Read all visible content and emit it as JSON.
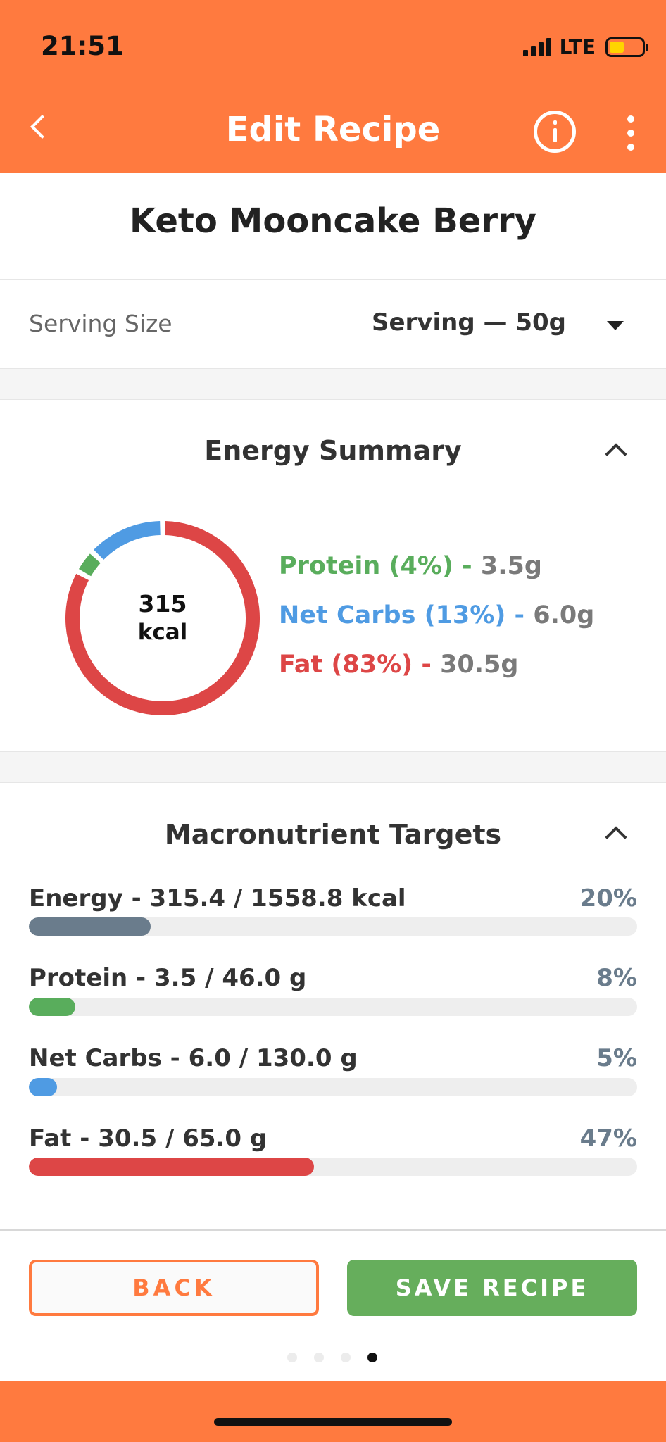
{
  "status_bar": {
    "time": "21:51",
    "network": "LTE"
  },
  "header": {
    "title": "Edit Recipe"
  },
  "recipe": {
    "name": "Keto Mooncake Berry"
  },
  "serving": {
    "label": "Serving Size",
    "value": "Serving  — 50g"
  },
  "energy_summary": {
    "title": "Energy Summary",
    "kcal_value": "315",
    "kcal_unit": "kcal",
    "legend": [
      {
        "label": "Protein (4%)",
        "separator": " - ",
        "amount": "3.5g",
        "color": "#59AD5C",
        "percent": 4
      },
      {
        "label": "Net Carbs (13%)",
        "separator": " - ",
        "amount": "6.0g",
        "color": "#4F9BE3",
        "percent": 13
      },
      {
        "label": "Fat (83%)",
        "separator": " - ",
        "amount": "30.5g",
        "color": "#DD4646",
        "percent": 83
      }
    ]
  },
  "macro_targets": {
    "title": "Macronutrient Targets",
    "items": [
      {
        "label": "Energy - 315.4 / 1558.8 kcal",
        "percent_label": "20%",
        "fraction": 0.2,
        "color": "#6A7C8C"
      },
      {
        "label": "Protein - 3.5 / 46.0 g",
        "percent_label": "8%",
        "fraction": 0.076,
        "color": "#59AD5C"
      },
      {
        "label": "Net Carbs - 6.0 / 130.0 g",
        "percent_label": "5%",
        "fraction": 0.046,
        "color": "#4F9BE3"
      },
      {
        "label": "Fat - 30.5 / 65.0 g",
        "percent_label": "47%",
        "fraction": 0.469,
        "color": "#DD4646"
      }
    ]
  },
  "buttons": {
    "back": "BACK",
    "save": "SAVE RECIPE"
  },
  "pager": {
    "count": 4,
    "active_index": 3
  },
  "colors": {
    "accent": "#FF7A3F",
    "save_green": "#66AE5C"
  }
}
